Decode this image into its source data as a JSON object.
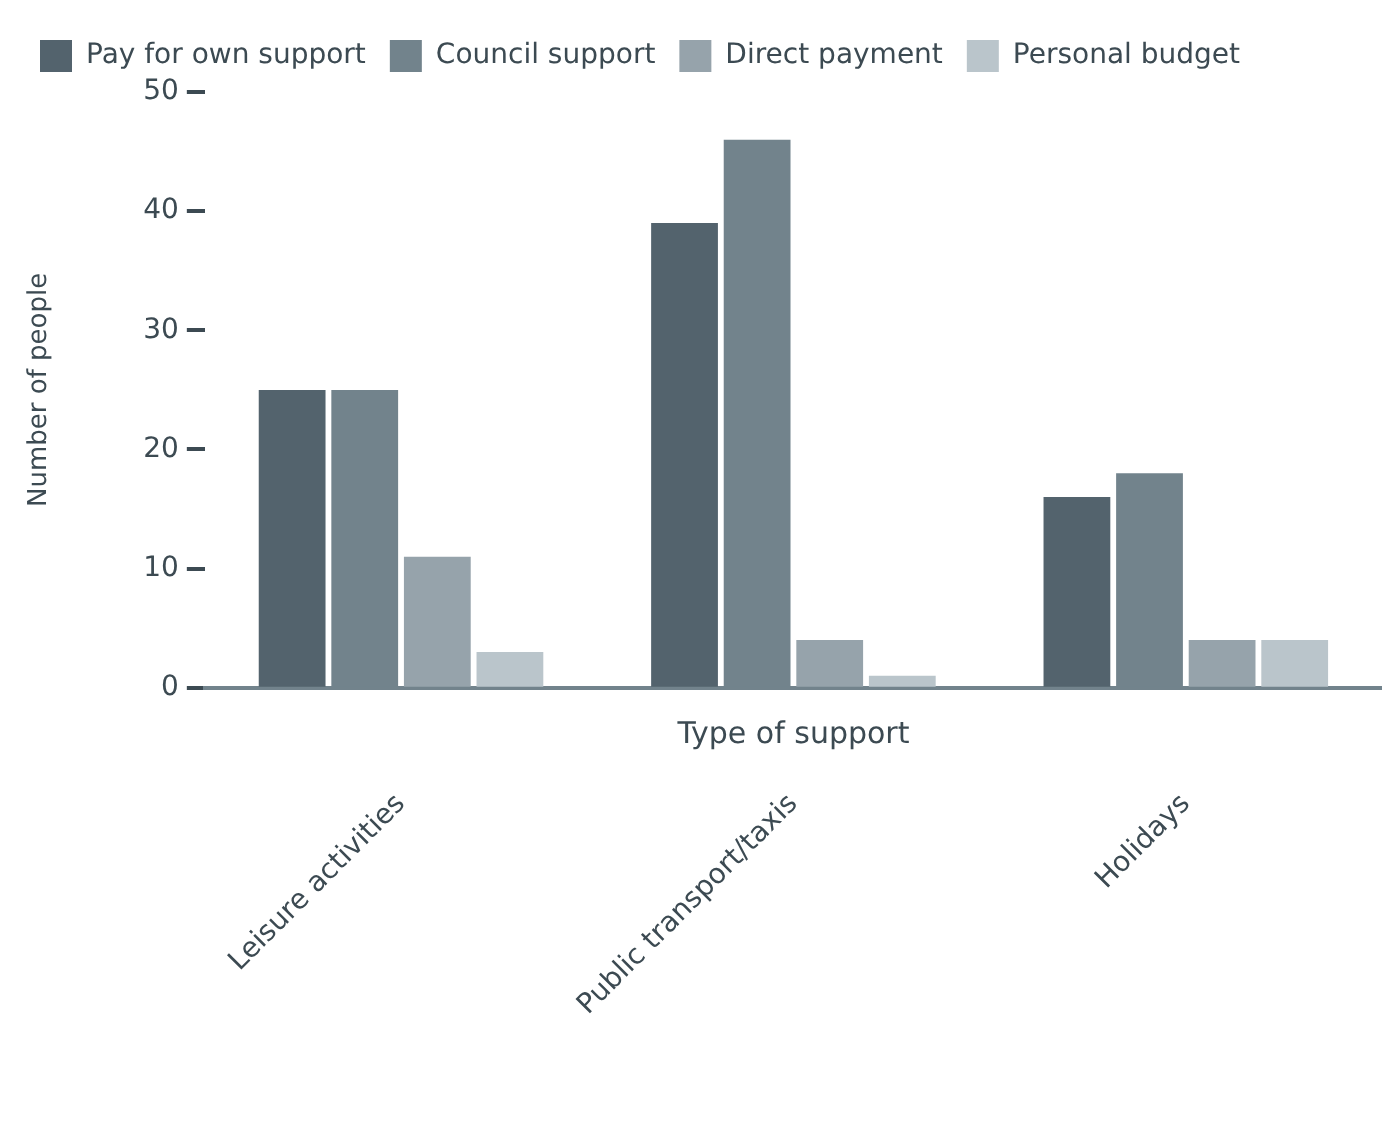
{
  "chart_data": {
    "type": "bar",
    "xlabel": "Type of support",
    "ylabel": "Number of people",
    "categories": [
      "Leisure activities",
      "Public transport/taxis",
      "Holidays"
    ],
    "series": [
      {
        "name": "Pay for own support",
        "color": "#53636d",
        "values": [
          25,
          39,
          16
        ]
      },
      {
        "name": "Council support",
        "color": "#72838c",
        "values": [
          25,
          46,
          18
        ]
      },
      {
        "name": "Direct payment",
        "color": "#96a3ab",
        "values": [
          11,
          4,
          4
        ]
      },
      {
        "name": "Personal budget",
        "color": "#bac5cb",
        "values": [
          3,
          1,
          4
        ]
      }
    ],
    "ylim": [
      0,
      50
    ],
    "yticks": [
      0,
      10,
      20,
      30,
      40,
      50
    ],
    "grid": false,
    "legend": "top left"
  }
}
